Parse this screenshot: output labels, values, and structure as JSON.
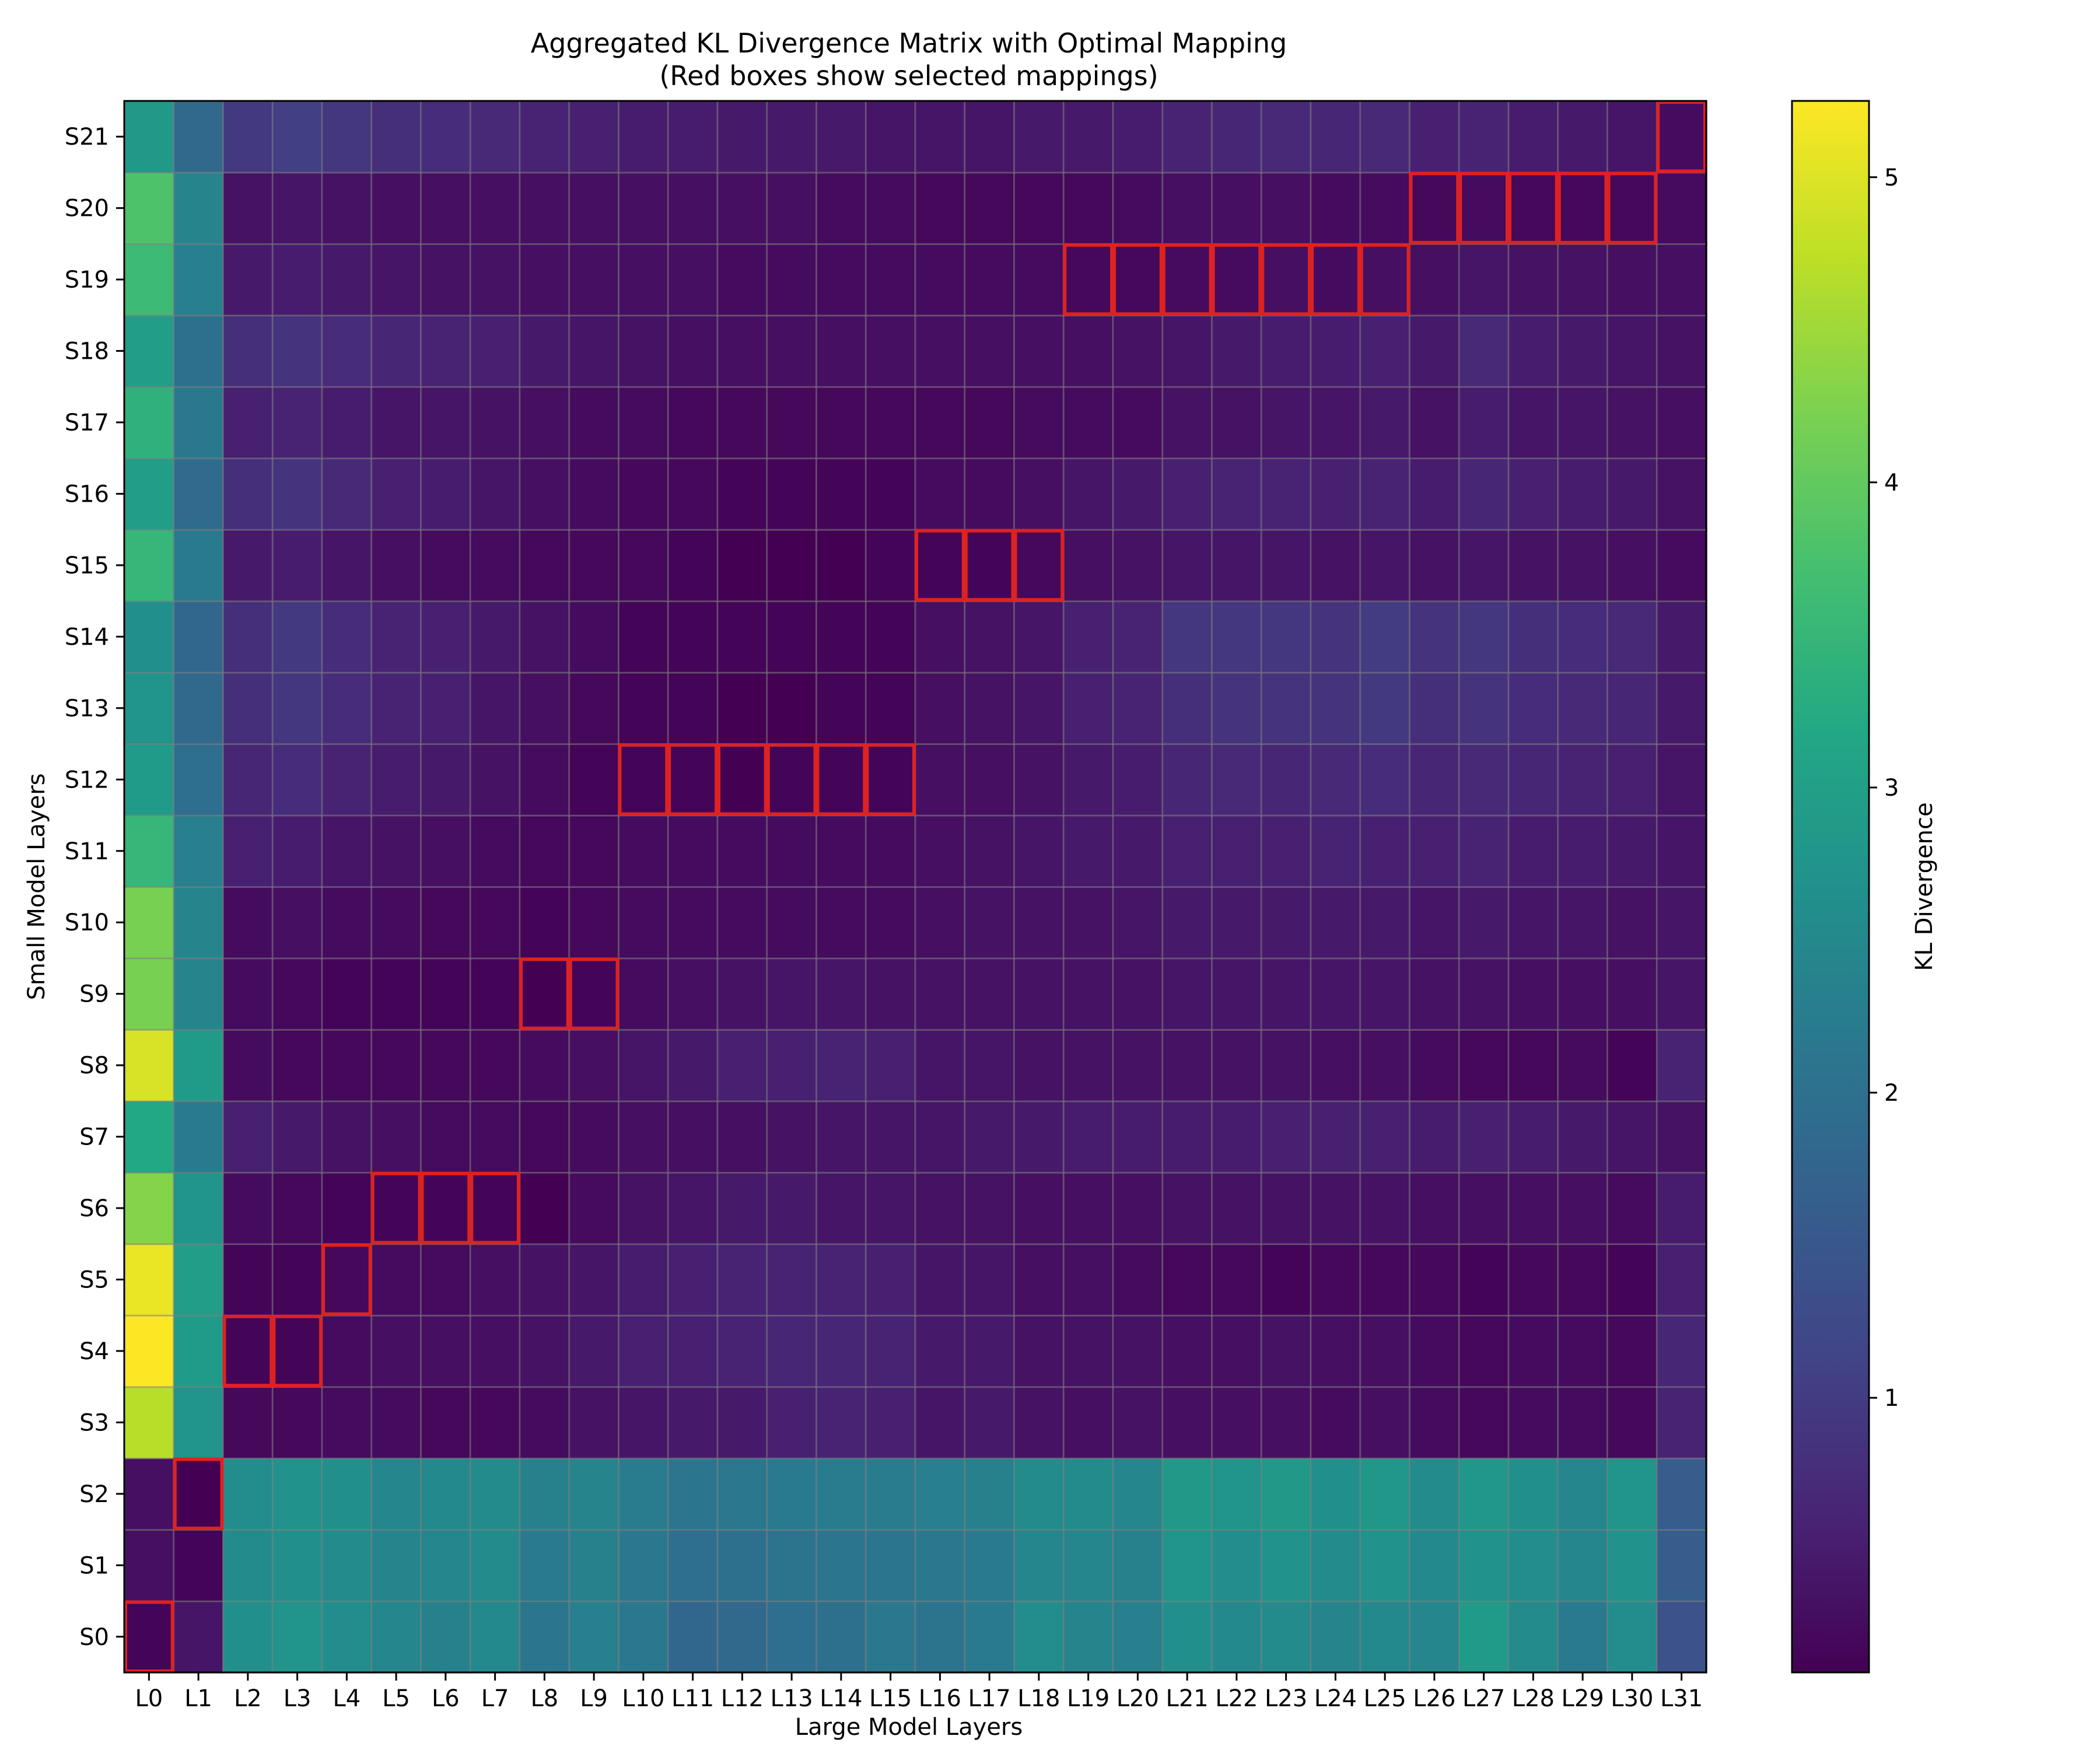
{
  "chart_data": {
    "type": "heatmap",
    "title": "Aggregated KL Divergence Matrix with Optimal Mapping",
    "subtitle": "(Red boxes show selected mappings)",
    "xlabel": "Large Model Layers",
    "ylabel": "Small Model Layers",
    "x_categories": [
      "L0",
      "L1",
      "L2",
      "L3",
      "L4",
      "L5",
      "L6",
      "L7",
      "L8",
      "L9",
      "L10",
      "L11",
      "L12",
      "L13",
      "L14",
      "L15",
      "L16",
      "L17",
      "L18",
      "L19",
      "L20",
      "L21",
      "L22",
      "L23",
      "L24",
      "L25",
      "L26",
      "L27",
      "L28",
      "L29",
      "L30",
      "L31"
    ],
    "y_categories": [
      "S0",
      "S1",
      "S2",
      "S3",
      "S4",
      "S5",
      "S6",
      "S7",
      "S8",
      "S9",
      "S10",
      "S11",
      "S12",
      "S13",
      "S14",
      "S15",
      "S16",
      "S17",
      "S18",
      "S19",
      "S20",
      "S21"
    ],
    "values": [
      [
        0.15,
        0.4,
        2.65,
        2.75,
        2.6,
        2.45,
        2.35,
        2.5,
        2.1,
        2.3,
        2.15,
        1.8,
        1.85,
        1.95,
        2.0,
        2.15,
        2.05,
        2.2,
        2.6,
        2.4,
        2.3,
        2.65,
        2.5,
        2.55,
        2.4,
        2.5,
        2.45,
        2.9,
        2.55,
        2.2,
        2.6,
        1.4
      ],
      [
        0.3,
        0.15,
        2.55,
        2.65,
        2.55,
        2.4,
        2.45,
        2.55,
        2.2,
        2.35,
        2.15,
        1.95,
        2.0,
        2.05,
        2.1,
        2.1,
        2.15,
        2.2,
        2.45,
        2.45,
        2.35,
        2.75,
        2.6,
        2.7,
        2.55,
        2.7,
        2.5,
        2.7,
        2.6,
        2.45,
        2.7,
        1.6
      ],
      [
        0.3,
        0.1,
        2.6,
        2.7,
        2.65,
        2.45,
        2.5,
        2.55,
        2.35,
        2.4,
        2.25,
        2.1,
        2.15,
        2.2,
        2.25,
        2.25,
        2.3,
        2.35,
        2.55,
        2.55,
        2.45,
        2.85,
        2.75,
        2.85,
        2.65,
        2.8,
        2.55,
        2.8,
        2.65,
        2.45,
        2.75,
        1.6
      ],
      [
        4.7,
        2.75,
        0.2,
        0.2,
        0.25,
        0.25,
        0.2,
        0.2,
        0.25,
        0.35,
        0.4,
        0.45,
        0.45,
        0.55,
        0.6,
        0.55,
        0.4,
        0.45,
        0.35,
        0.3,
        0.35,
        0.3,
        0.3,
        0.3,
        0.25,
        0.3,
        0.25,
        0.2,
        0.25,
        0.25,
        0.2,
        0.6
      ],
      [
        5.25,
        2.9,
        0.15,
        0.15,
        0.25,
        0.3,
        0.3,
        0.3,
        0.35,
        0.45,
        0.55,
        0.55,
        0.6,
        0.65,
        0.65,
        0.6,
        0.45,
        0.45,
        0.35,
        0.35,
        0.35,
        0.3,
        0.3,
        0.35,
        0.3,
        0.3,
        0.25,
        0.2,
        0.25,
        0.25,
        0.2,
        0.65
      ],
      [
        5.1,
        2.95,
        0.15,
        0.15,
        0.2,
        0.25,
        0.25,
        0.3,
        0.35,
        0.4,
        0.5,
        0.55,
        0.6,
        0.6,
        0.6,
        0.55,
        0.4,
        0.4,
        0.3,
        0.3,
        0.25,
        0.2,
        0.2,
        0.15,
        0.2,
        0.2,
        0.2,
        0.15,
        0.2,
        0.2,
        0.15,
        0.55
      ],
      [
        4.3,
        2.75,
        0.25,
        0.2,
        0.15,
        0.15,
        0.15,
        0.15,
        0.1,
        0.25,
        0.35,
        0.4,
        0.45,
        0.45,
        0.4,
        0.4,
        0.35,
        0.35,
        0.3,
        0.3,
        0.3,
        0.35,
        0.35,
        0.35,
        0.35,
        0.35,
        0.3,
        0.3,
        0.3,
        0.3,
        0.25,
        0.5
      ],
      [
        3.2,
        2.2,
        0.55,
        0.45,
        0.35,
        0.3,
        0.25,
        0.25,
        0.2,
        0.25,
        0.3,
        0.3,
        0.3,
        0.35,
        0.4,
        0.4,
        0.4,
        0.45,
        0.45,
        0.5,
        0.5,
        0.5,
        0.5,
        0.55,
        0.55,
        0.55,
        0.5,
        0.55,
        0.5,
        0.45,
        0.4,
        0.35
      ],
      [
        4.95,
        2.9,
        0.25,
        0.2,
        0.2,
        0.2,
        0.2,
        0.2,
        0.25,
        0.3,
        0.4,
        0.45,
        0.55,
        0.55,
        0.6,
        0.55,
        0.4,
        0.4,
        0.35,
        0.35,
        0.35,
        0.35,
        0.35,
        0.35,
        0.3,
        0.3,
        0.25,
        0.2,
        0.2,
        0.25,
        0.15,
        0.6
      ],
      [
        4.2,
        2.4,
        0.25,
        0.2,
        0.15,
        0.15,
        0.15,
        0.15,
        0.1,
        0.15,
        0.25,
        0.3,
        0.35,
        0.4,
        0.4,
        0.35,
        0.35,
        0.35,
        0.35,
        0.35,
        0.35,
        0.4,
        0.4,
        0.4,
        0.4,
        0.4,
        0.35,
        0.35,
        0.3,
        0.3,
        0.3,
        0.4
      ],
      [
        4.2,
        2.4,
        0.25,
        0.3,
        0.25,
        0.25,
        0.2,
        0.2,
        0.15,
        0.2,
        0.25,
        0.25,
        0.25,
        0.25,
        0.25,
        0.25,
        0.3,
        0.35,
        0.35,
        0.35,
        0.4,
        0.45,
        0.45,
        0.45,
        0.45,
        0.45,
        0.4,
        0.45,
        0.4,
        0.4,
        0.35,
        0.4
      ],
      [
        3.5,
        2.3,
        0.55,
        0.5,
        0.4,
        0.35,
        0.3,
        0.25,
        0.2,
        0.2,
        0.25,
        0.25,
        0.25,
        0.25,
        0.25,
        0.25,
        0.3,
        0.35,
        0.4,
        0.45,
        0.45,
        0.55,
        0.55,
        0.55,
        0.6,
        0.55,
        0.55,
        0.6,
        0.5,
        0.5,
        0.45,
        0.4
      ],
      [
        2.9,
        1.95,
        0.65,
        0.75,
        0.6,
        0.5,
        0.45,
        0.35,
        0.25,
        0.15,
        0.15,
        0.15,
        0.1,
        0.15,
        0.15,
        0.15,
        0.3,
        0.3,
        0.35,
        0.45,
        0.5,
        0.65,
        0.7,
        0.65,
        0.7,
        0.75,
        0.65,
        0.7,
        0.65,
        0.6,
        0.55,
        0.4
      ],
      [
        2.75,
        1.85,
        0.8,
        0.9,
        0.75,
        0.6,
        0.55,
        0.4,
        0.3,
        0.2,
        0.15,
        0.15,
        0.1,
        0.1,
        0.15,
        0.15,
        0.3,
        0.35,
        0.4,
        0.55,
        0.6,
        0.8,
        0.85,
        0.85,
        0.85,
        0.95,
        0.8,
        0.85,
        0.75,
        0.7,
        0.65,
        0.45
      ],
      [
        2.65,
        1.8,
        0.8,
        0.95,
        0.75,
        0.6,
        0.55,
        0.45,
        0.35,
        0.25,
        0.15,
        0.15,
        0.15,
        0.15,
        0.15,
        0.15,
        0.3,
        0.35,
        0.4,
        0.55,
        0.6,
        0.9,
        0.9,
        0.9,
        0.85,
        1.0,
        0.85,
        0.9,
        0.8,
        0.75,
        0.7,
        0.45
      ],
      [
        3.5,
        2.2,
        0.45,
        0.5,
        0.4,
        0.3,
        0.25,
        0.25,
        0.2,
        0.2,
        0.2,
        0.15,
        0.1,
        0.1,
        0.1,
        0.15,
        0.15,
        0.15,
        0.2,
        0.3,
        0.35,
        0.4,
        0.4,
        0.4,
        0.35,
        0.4,
        0.35,
        0.4,
        0.35,
        0.35,
        0.3,
        0.25
      ],
      [
        2.95,
        1.9,
        0.8,
        0.85,
        0.7,
        0.55,
        0.5,
        0.4,
        0.3,
        0.25,
        0.2,
        0.2,
        0.15,
        0.15,
        0.15,
        0.15,
        0.25,
        0.25,
        0.3,
        0.4,
        0.45,
        0.55,
        0.6,
        0.6,
        0.55,
        0.6,
        0.5,
        0.65,
        0.55,
        0.5,
        0.45,
        0.35
      ],
      [
        3.4,
        2.15,
        0.55,
        0.6,
        0.5,
        0.4,
        0.4,
        0.35,
        0.3,
        0.25,
        0.25,
        0.2,
        0.2,
        0.2,
        0.2,
        0.2,
        0.2,
        0.2,
        0.25,
        0.25,
        0.25,
        0.35,
        0.35,
        0.4,
        0.4,
        0.45,
        0.35,
        0.5,
        0.4,
        0.4,
        0.35,
        0.3
      ],
      [
        2.95,
        2.0,
        0.8,
        0.85,
        0.75,
        0.65,
        0.6,
        0.55,
        0.45,
        0.4,
        0.35,
        0.3,
        0.3,
        0.3,
        0.3,
        0.3,
        0.3,
        0.3,
        0.3,
        0.3,
        0.35,
        0.4,
        0.45,
        0.5,
        0.5,
        0.55,
        0.45,
        0.7,
        0.5,
        0.45,
        0.4,
        0.35
      ],
      [
        3.6,
        2.3,
        0.45,
        0.5,
        0.45,
        0.4,
        0.35,
        0.35,
        0.3,
        0.3,
        0.3,
        0.3,
        0.25,
        0.25,
        0.25,
        0.25,
        0.25,
        0.25,
        0.25,
        0.2,
        0.2,
        0.25,
        0.25,
        0.3,
        0.25,
        0.3,
        0.3,
        0.4,
        0.35,
        0.35,
        0.3,
        0.3
      ],
      [
        3.8,
        2.4,
        0.35,
        0.4,
        0.35,
        0.3,
        0.3,
        0.3,
        0.3,
        0.3,
        0.3,
        0.3,
        0.3,
        0.3,
        0.25,
        0.25,
        0.2,
        0.2,
        0.2,
        0.2,
        0.25,
        0.3,
        0.3,
        0.3,
        0.25,
        0.25,
        0.2,
        0.25,
        0.2,
        0.2,
        0.2,
        0.25
      ],
      [
        2.85,
        1.85,
        0.95,
        1.05,
        0.9,
        0.8,
        0.75,
        0.7,
        0.6,
        0.55,
        0.5,
        0.5,
        0.45,
        0.45,
        0.45,
        0.4,
        0.4,
        0.4,
        0.45,
        0.45,
        0.5,
        0.6,
        0.65,
        0.7,
        0.65,
        0.7,
        0.55,
        0.6,
        0.5,
        0.45,
        0.4,
        0.25
      ]
    ],
    "selected_mappings": [
      {
        "small": "S0",
        "large": [
          "L0"
        ]
      },
      {
        "small": "S2",
        "large": [
          "L1"
        ]
      },
      {
        "small": "S4",
        "large": [
          "L2",
          "L3"
        ]
      },
      {
        "small": "S5",
        "large": [
          "L4"
        ]
      },
      {
        "small": "S6",
        "large": [
          "L5",
          "L6",
          "L7"
        ]
      },
      {
        "small": "S9",
        "large": [
          "L8",
          "L9"
        ]
      },
      {
        "small": "S12",
        "large": [
          "L10",
          "L11",
          "L12",
          "L13",
          "L14",
          "L15"
        ]
      },
      {
        "small": "S15",
        "large": [
          "L16",
          "L17",
          "L18"
        ]
      },
      {
        "small": "S19",
        "large": [
          "L19",
          "L20",
          "L21",
          "L22",
          "L23",
          "L24",
          "L25"
        ]
      },
      {
        "small": "S20",
        "large": [
          "L26",
          "L27",
          "L28",
          "L29",
          "L30"
        ]
      },
      {
        "small": "S21",
        "large": [
          "L31"
        ]
      }
    ],
    "colorbar": {
      "label": "KL Divergence",
      "colormap": "viridis",
      "range": [
        0.1,
        5.25
      ],
      "ticks": [
        1,
        2,
        3,
        4,
        5
      ]
    },
    "highlight_color": "#dd2222",
    "grid": true
  }
}
